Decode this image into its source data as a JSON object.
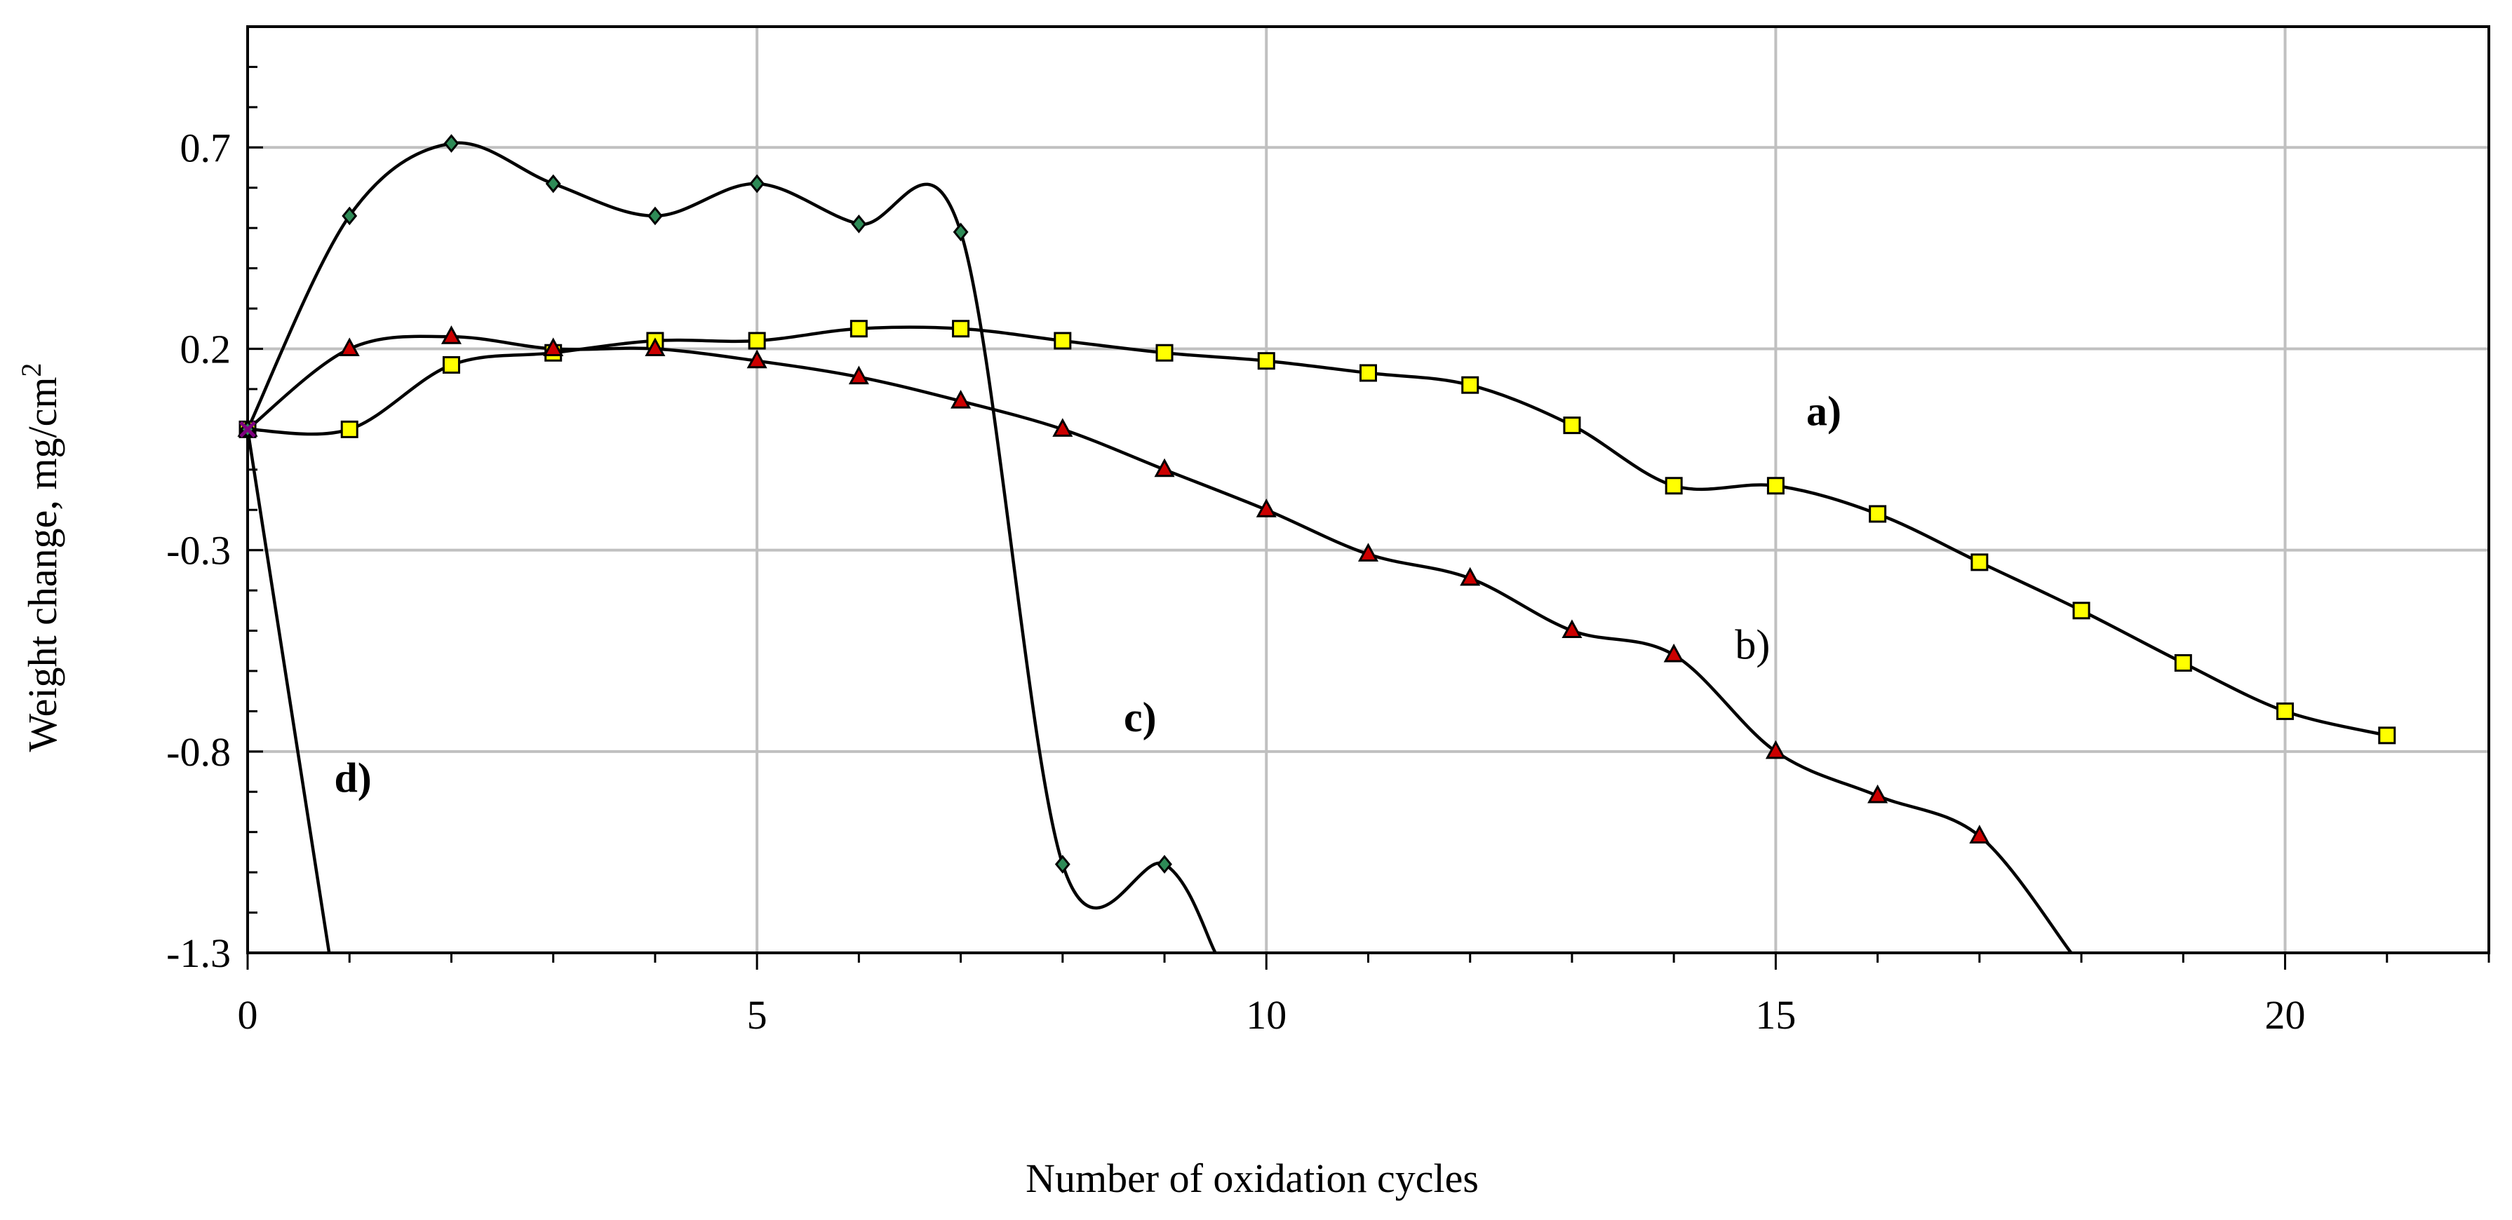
{
  "chart_data": {
    "type": "line",
    "title": "",
    "xlabel": "Number of oxidation cycles",
    "ylabel": "Weight change, mg/cm",
    "ylabel_superscript": "2",
    "xlim": [
      0,
      22
    ],
    "ylim": [
      -1.3,
      1.0
    ],
    "x_ticks": [
      0,
      5,
      10,
      15,
      20
    ],
    "y_ticks": [
      -1.3,
      -0.8,
      -0.3,
      0.2,
      0.7
    ],
    "x_tick_labels": [
      "0",
      "5",
      "10",
      "15",
      "20"
    ],
    "y_tick_labels": [
      "-1.3",
      "-0.8",
      "-0.3",
      "0.2",
      "0.7"
    ],
    "grid": true,
    "series": [
      {
        "name": "a)",
        "label_bold": true,
        "marker": "square",
        "marker_color": "#ffff00",
        "label_pos": [
          15.3,
          0.01
        ],
        "points": [
          [
            0,
            0
          ],
          [
            1,
            0
          ],
          [
            2,
            0.16
          ],
          [
            3,
            0.19
          ],
          [
            4,
            0.22
          ],
          [
            5,
            0.22
          ],
          [
            6,
            0.25
          ],
          [
            7,
            0.25
          ],
          [
            8,
            0.22
          ],
          [
            9,
            0.19
          ],
          [
            10,
            0.17
          ],
          [
            11,
            0.14
          ],
          [
            12,
            0.11
          ],
          [
            13,
            0.01
          ],
          [
            14,
            -0.14
          ],
          [
            15,
            -0.14
          ],
          [
            16,
            -0.21
          ],
          [
            17,
            -0.33
          ],
          [
            18,
            -0.45
          ],
          [
            19,
            -0.58
          ],
          [
            20,
            -0.7
          ],
          [
            21,
            -0.76
          ]
        ],
        "tail": null
      },
      {
        "name": "b)",
        "label_bold": false,
        "marker": "triangle",
        "marker_color": "#cc0000",
        "label_pos": [
          14.6,
          -0.57
        ],
        "points": [
          [
            0,
            0
          ],
          [
            1,
            0.2
          ],
          [
            2,
            0.23
          ],
          [
            3,
            0.2
          ],
          [
            4,
            0.2
          ],
          [
            5,
            0.17
          ],
          [
            6,
            0.13
          ],
          [
            7,
            0.07
          ],
          [
            8,
            0
          ],
          [
            9,
            -0.1
          ],
          [
            10,
            -0.2
          ],
          [
            11,
            -0.31
          ],
          [
            12,
            -0.37
          ],
          [
            13,
            -0.5
          ],
          [
            14,
            -0.56
          ],
          [
            15,
            -0.8
          ],
          [
            16,
            -0.91
          ],
          [
            17,
            -1.01
          ]
        ],
        "tail": [
          17.9,
          -1.3
        ]
      },
      {
        "name": "c)",
        "label_bold": true,
        "marker": "diamond",
        "marker_color": "#2e8b57",
        "label_pos": [
          8.6,
          -0.75
        ],
        "points": [
          [
            0,
            0
          ],
          [
            1,
            0.53
          ],
          [
            2,
            0.71
          ],
          [
            3,
            0.61
          ],
          [
            4,
            0.53
          ],
          [
            5,
            0.61
          ],
          [
            6,
            0.51
          ],
          [
            7,
            0.49
          ],
          [
            8,
            -1.08
          ],
          [
            9,
            -1.08
          ]
        ],
        "tail": [
          9.5,
          -1.3
        ]
      },
      {
        "name": "d)",
        "label_bold": true,
        "marker": "none",
        "marker_color": "#800080",
        "label_pos": [
          0.85,
          -0.9
        ],
        "points": [
          [
            0,
            0
          ]
        ],
        "tail": [
          0.8,
          -1.3
        ]
      }
    ]
  }
}
